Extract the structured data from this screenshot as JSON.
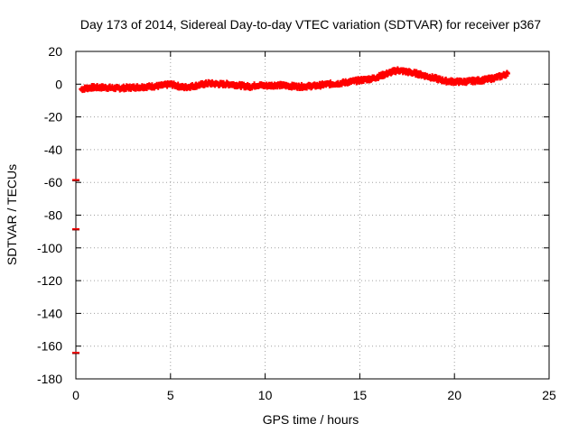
{
  "chart_data": {
    "type": "scatter",
    "title": "Day 173 of 2014, Sidereal Day-to-day VTEC variation (SDTVAR) for receiver p367",
    "xlabel": "GPS time / hours",
    "ylabel": "SDTVAR / TECUs",
    "xlim": [
      0,
      25
    ],
    "ylim": [
      -180,
      20
    ],
    "xticks": [
      0,
      5,
      10,
      15,
      20,
      25
    ],
    "yticks": [
      20,
      0,
      -20,
      -40,
      -60,
      -80,
      -100,
      -120,
      -140,
      -160,
      -180
    ],
    "grid": true,
    "series": [
      {
        "name": "SDTVAR",
        "color": "#ff0000",
        "points": [
          [
            0.3,
            -3
          ],
          [
            0.8,
            -2
          ],
          [
            1.5,
            -2
          ],
          [
            2.2,
            -2.5
          ],
          [
            3.0,
            -2
          ],
          [
            3.8,
            -1.5
          ],
          [
            4.5,
            -1
          ],
          [
            5.0,
            0
          ],
          [
            5.7,
            -2
          ],
          [
            6.3,
            -1
          ],
          [
            7.0,
            0.5
          ],
          [
            7.6,
            0
          ],
          [
            8.2,
            0
          ],
          [
            8.8,
            -1
          ],
          [
            9.2,
            -1.5
          ],
          [
            9.6,
            -0.5
          ],
          [
            10.0,
            -1
          ],
          [
            10.6,
            -0.5
          ],
          [
            11.2,
            -1
          ],
          [
            11.8,
            -1.5
          ],
          [
            12.7,
            -1
          ],
          [
            13.3,
            0
          ],
          [
            13.9,
            0.5
          ],
          [
            14.5,
            1.5
          ],
          [
            15.1,
            2.5
          ],
          [
            15.7,
            3.5
          ],
          [
            16.2,
            5.5
          ],
          [
            16.7,
            7.5
          ],
          [
            17.0,
            8.5
          ],
          [
            17.5,
            7.5
          ],
          [
            18.0,
            6.5
          ],
          [
            18.5,
            5
          ],
          [
            19.0,
            3.5
          ],
          [
            19.5,
            2
          ],
          [
            20.0,
            1.5
          ],
          [
            20.5,
            1.5
          ],
          [
            21.0,
            2
          ],
          [
            21.5,
            2.5
          ],
          [
            22.0,
            3.5
          ],
          [
            22.5,
            5
          ],
          [
            22.8,
            6.5
          ]
        ],
        "outliers": [
          [
            0,
            -58.5
          ],
          [
            0,
            -88.5
          ],
          [
            0,
            -164
          ]
        ]
      }
    ]
  }
}
